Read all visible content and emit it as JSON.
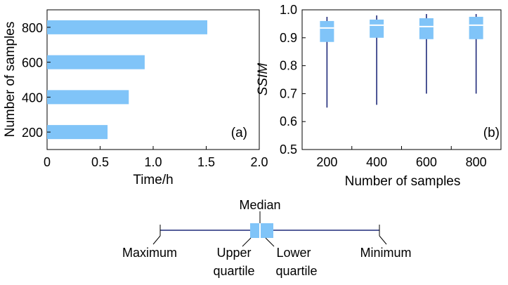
{
  "chart_data": [
    {
      "type": "bar",
      "orientation": "horizontal",
      "panel_label": "(a)",
      "categories": [
        "200",
        "400",
        "600",
        "800"
      ],
      "values": [
        0.57,
        0.77,
        0.92,
        1.51
      ],
      "xlabel": "Time/h",
      "ylabel": "Number of samples",
      "xlim": [
        0,
        2.0
      ],
      "xticks": [
        "0",
        "0.5",
        "1.0",
        "1.5",
        "2.0"
      ],
      "color": "#80c4f8"
    },
    {
      "type": "box",
      "panel_label": "(b)",
      "categories": [
        "200",
        "400",
        "600",
        "800"
      ],
      "series": [
        {
          "category": "200",
          "min": 0.65,
          "q1": 0.885,
          "median": 0.935,
          "q3": 0.96,
          "max": 0.975
        },
        {
          "category": "400",
          "min": 0.66,
          "q1": 0.9,
          "median": 0.945,
          "q3": 0.965,
          "max": 0.98
        },
        {
          "category": "600",
          "min": 0.7,
          "q1": 0.895,
          "median": 0.94,
          "q3": 0.97,
          "max": 0.985
        },
        {
          "category": "800",
          "min": 0.7,
          "q1": 0.895,
          "median": 0.945,
          "q3": 0.975,
          "max": 0.985
        }
      ],
      "xlabel": "Number of samples",
      "ylabel": "SSIM",
      "ylim": [
        0.5,
        1.0
      ],
      "yticks": [
        "0.5",
        "0.6",
        "0.7",
        "0.8",
        "0.9",
        "1.0"
      ],
      "box_color": "#80c4f8",
      "whisker_color": "#1f2a7a"
    }
  ],
  "legend": {
    "median": "Median",
    "maximum": "Maximum",
    "upper_quartile_1": "Upper",
    "upper_quartile_2": "quartile",
    "lower_quartile_1": "Lower",
    "lower_quartile_2": "quartile",
    "minimum": "Minimum"
  }
}
